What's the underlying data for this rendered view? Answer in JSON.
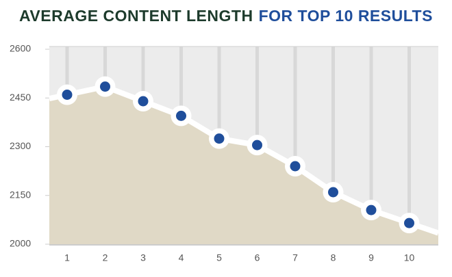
{
  "chart_data": {
    "type": "area_line",
    "title": "AVERAGE CONTENT LENGTH",
    "title_highlight": "FOR TOP 10 RESULTS",
    "title_color": "#1d3b2c",
    "title_highlight_color": "#1f4e9b",
    "categories": [
      "1",
      "2",
      "3",
      "4",
      "5",
      "6",
      "7",
      "8",
      "9",
      "10"
    ],
    "values": [
      2460,
      2485,
      2440,
      2395,
      2325,
      2305,
      2240,
      2160,
      2105,
      2065
    ],
    "ylim": [
      2000,
      2600
    ],
    "yticks": [
      2000,
      2150,
      2300,
      2450,
      2600
    ],
    "color": "#1f4e9b",
    "area_color": "#e0d9c6",
    "grid": true
  }
}
